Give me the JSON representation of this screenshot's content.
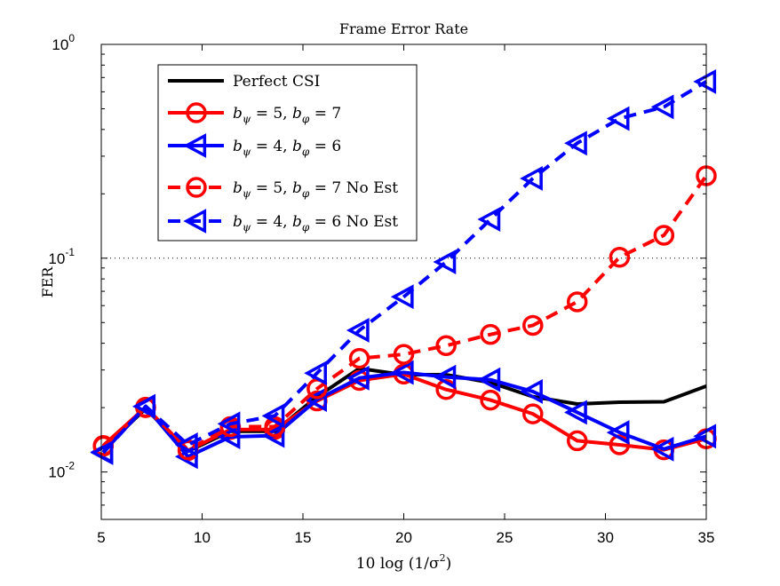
{
  "chart_data": {
    "type": "line",
    "title": "Frame Error Rate",
    "xlabel": "10 log (1/σ²)",
    "xlabel_parts": {
      "pre": "10 log ",
      "base": "(1/σ",
      "sup": "2",
      "post": ")"
    },
    "ylabel": "FER",
    "y_scale": "log",
    "xlim": [
      5,
      35
    ],
    "ylim": [
      0.006,
      1
    ],
    "x_ticks": [
      5,
      10,
      15,
      20,
      25,
      30,
      35
    ],
    "y_ticks": [
      {
        "value": 0.01,
        "base": "10",
        "exp": "-2"
      },
      {
        "value": 0.1,
        "base": "10",
        "exp": "-1"
      },
      {
        "value": 1,
        "base": "10",
        "exp": "0"
      }
    ],
    "reference_line": {
      "y": 0.1,
      "style": "dotted"
    },
    "x": [
      5.1,
      7.2,
      9.3,
      11.4,
      13.6,
      15.7,
      17.8,
      20,
      22.1,
      24.3,
      26.4,
      28.6,
      30.7,
      32.9,
      35
    ],
    "series": [
      {
        "name": "Perfect CSI",
        "legend": {
          "plain": "Perfect CSI"
        },
        "color": "#000000",
        "dash": "solid",
        "marker": "none",
        "values": [
          0.0128,
          0.0198,
          0.0125,
          0.0155,
          0.0155,
          0.0225,
          0.0305,
          0.0285,
          0.0285,
          0.0262,
          0.0225,
          0.0208,
          0.0212,
          0.0213,
          0.0252
        ]
      },
      {
        "name": "b_psi=5, b_phi=7",
        "legend": {
          "b1": "5",
          "b2": "7",
          "suffix": ""
        },
        "color": "#ff0000",
        "dash": "solid",
        "marker": "circle",
        "values": [
          0.0133,
          0.0201,
          0.0126,
          0.0158,
          0.0158,
          0.0215,
          0.0268,
          0.0287,
          0.0243,
          0.0217,
          0.0187,
          0.014,
          0.0134,
          0.0127,
          0.0143
        ]
      },
      {
        "name": "b_psi=4, b_phi=6",
        "legend": {
          "b1": "4",
          "b2": "6",
          "suffix": ""
        },
        "color": "#0000ff",
        "dash": "solid",
        "marker": "triangle-left",
        "values": [
          0.0124,
          0.0202,
          0.0118,
          0.0146,
          0.0148,
          0.0218,
          0.0275,
          0.0292,
          0.0278,
          0.027,
          0.0238,
          0.019,
          0.0153,
          0.0128,
          0.0147
        ]
      },
      {
        "name": "b_psi=5, b_phi=7 No Est",
        "legend": {
          "b1": "5",
          "b2": "7",
          "suffix": " No Est"
        },
        "color": "#ff0000",
        "dash": "dashed",
        "marker": "circle",
        "values": [
          0.0132,
          0.02,
          0.0127,
          0.0163,
          0.0163,
          0.0245,
          0.034,
          0.0355,
          0.039,
          0.044,
          0.0485,
          0.0625,
          0.101,
          0.128,
          0.243
        ]
      },
      {
        "name": "b_psi=4, b_phi=6 No Est",
        "legend": {
          "b1": "4",
          "b2": "6",
          "suffix": " No Est"
        },
        "color": "#0000ff",
        "dash": "dashed",
        "marker": "triangle-left",
        "values": [
          0.0123,
          0.0203,
          0.0134,
          0.0168,
          0.0183,
          0.029,
          0.046,
          0.066,
          0.096,
          0.152,
          0.236,
          0.345,
          0.45,
          0.51,
          0.67
        ]
      }
    ]
  }
}
